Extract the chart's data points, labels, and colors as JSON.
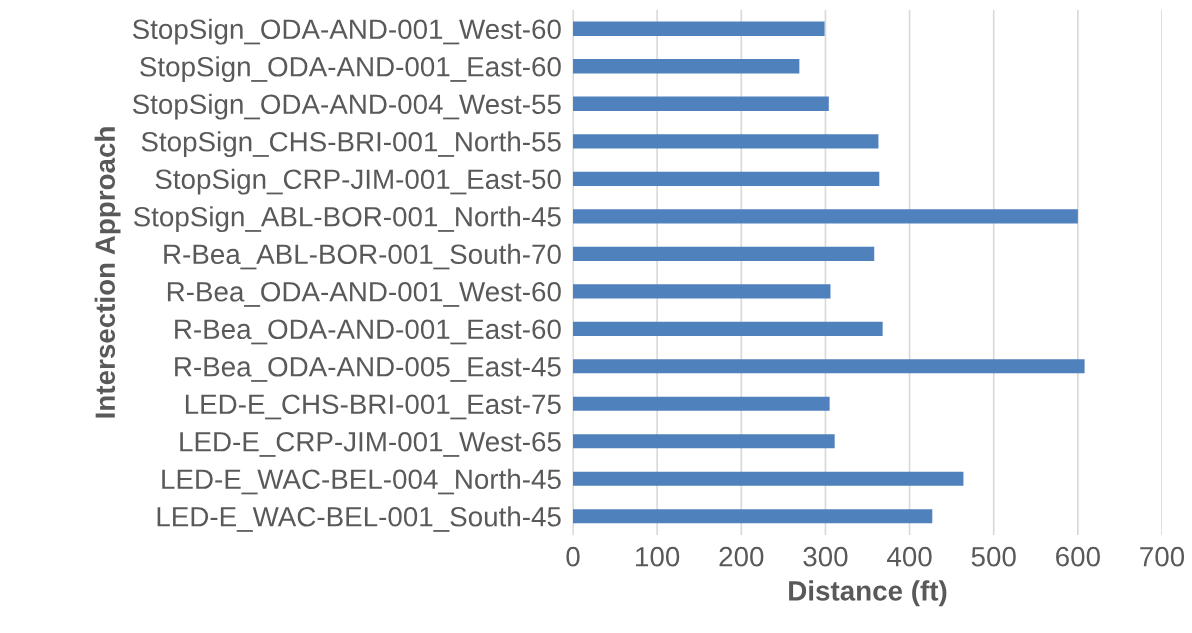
{
  "chart_data": {
    "type": "bar",
    "orientation": "horizontal",
    "xlabel": "Distance (ft)",
    "ylabel": "Intersection Approach",
    "categories": [
      "StopSign_ODA-AND-001_West-60",
      "StopSign_ODA-AND-001_East-60",
      "StopSign_ODA-AND-004_West-55",
      "StopSign_CHS-BRI-001_North-55",
      "StopSign_CRP-JIM-001_East-50",
      "StopSign_ABL-BOR-001_North-45",
      "R-Bea_ABL-BOR-001_South-70",
      "R-Bea_ODA-AND-001_West-60",
      "R-Bea_ODA-AND-001_East-60",
      "R-Bea_ODA-AND-005_East-45",
      "LED-E_CHS-BRI-001_East-75",
      "LED-E_CRP-JIM-001_West-65",
      "LED-E_WAC-BEL-004_North-45",
      "LED-E_WAC-BEL-001_South-45"
    ],
    "values": [
      299,
      269,
      304,
      363,
      364,
      600,
      358,
      306,
      368,
      608,
      305,
      311,
      464,
      427
    ],
    "color": "#4f81bd",
    "xlim": [
      0,
      700
    ],
    "xticks": [
      0,
      100,
      200,
      300,
      400,
      500,
      600,
      700
    ],
    "grid": "x",
    "legend": false
  }
}
